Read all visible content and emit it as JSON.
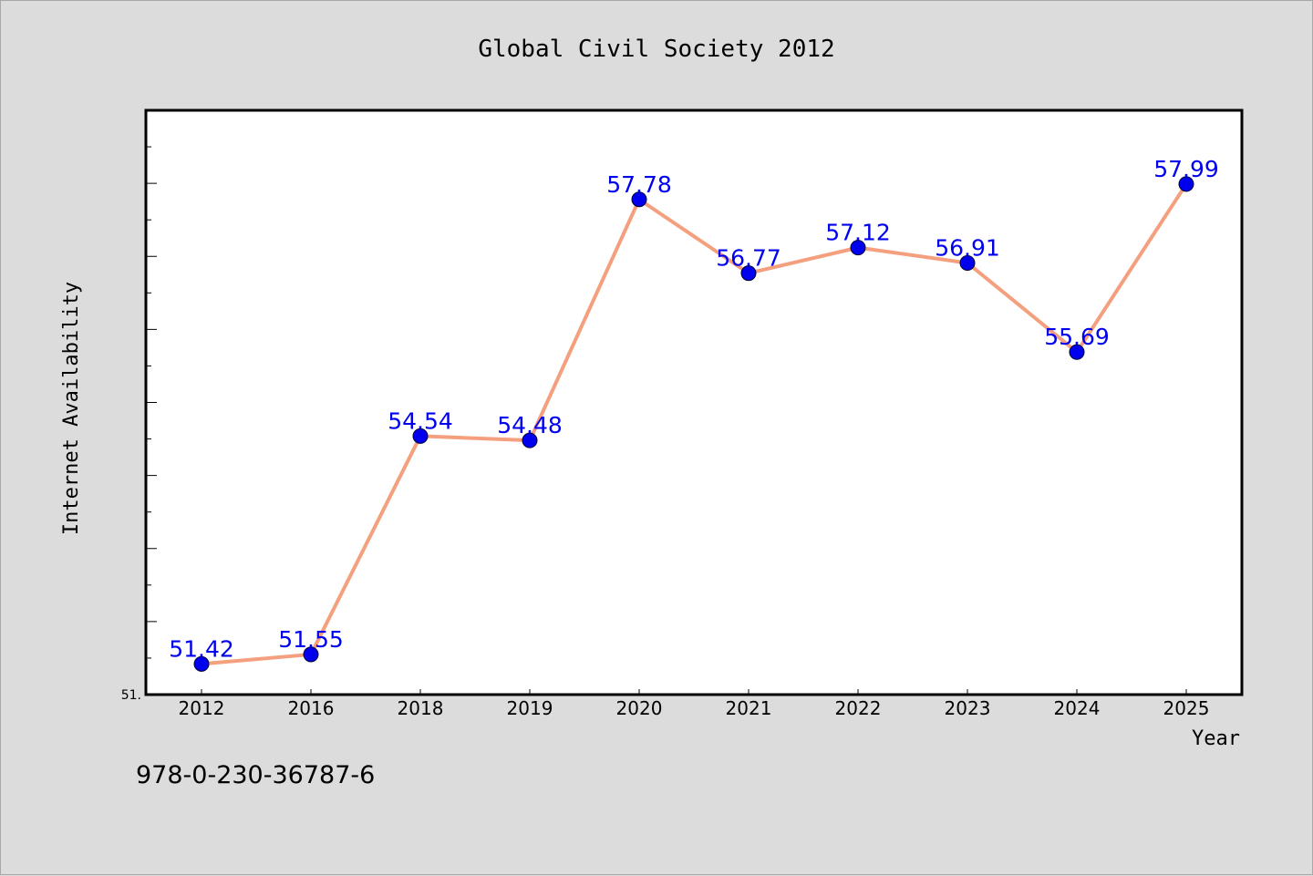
{
  "colors": {
    "background": "#dcdcdc",
    "plot_background": "#ffffff",
    "line": "#f4a07f",
    "marker": "#0000ee",
    "data_label": "#0000ee",
    "axes": "#000000"
  },
  "footer": {
    "code": "978-0-230-36787-6"
  },
  "chart_data": {
    "type": "line",
    "title": "Global Civil Society 2012",
    "xlabel": "Year",
    "ylabel": "Internet Availability",
    "categories": [
      "2012",
      "2016",
      "2018",
      "2019",
      "2020",
      "2021",
      "2022",
      "2023",
      "2024",
      "2025"
    ],
    "series": [
      {
        "values": [
          51.42,
          51.55,
          54.54,
          54.48,
          57.78,
          56.77,
          57.12,
          56.91,
          55.69,
          57.99
        ]
      }
    ],
    "data_labels": [
      "51.42",
      "51.55",
      "54.54",
      "54.48",
      "57.78",
      "56.77",
      "57.12",
      "56.91",
      "55.69",
      "57.99"
    ],
    "y_min_label": "51.",
    "ylim": [
      51.0,
      59.0
    ],
    "grid": false,
    "legend": "none"
  }
}
